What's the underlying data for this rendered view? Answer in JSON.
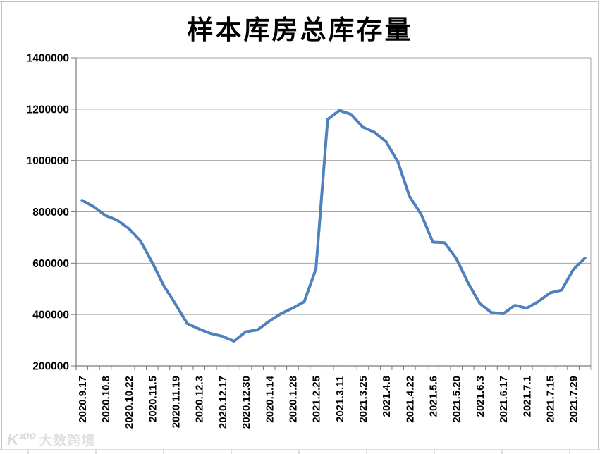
{
  "watermark": {
    "logo": "K¹⁰⁰",
    "text": "大数跨境"
  },
  "chart_data": {
    "type": "line",
    "title": "样本库房总库存量",
    "xlabel": "",
    "ylabel": "",
    "x_labels": [
      "2020.9.17",
      "2020.10.8",
      "2020.10.22",
      "2020.11.5",
      "2020.11.19",
      "2020.12.3",
      "2020.12.17",
      "2020.12.30",
      "2020.1.14",
      "2020.1.28",
      "2021.2.25",
      "2021.3.11",
      "2021.3.25",
      "2021.4.8",
      "2021.4.22",
      "2021.5.6",
      "2021.5.20",
      "2021.6.3",
      "2021.6.17",
      "2021.7.1",
      "2021.7.15",
      "2021.7.29"
    ],
    "x_label_every": 2,
    "series": [
      {
        "name": "样本库房总库存量",
        "color": "#4F81BD",
        "values": [
          845000,
          820000,
          786000,
          768000,
          735000,
          687000,
          603000,
          512000,
          440000,
          365000,
          344000,
          326000,
          315000,
          296000,
          333000,
          340000,
          374000,
          403000,
          425000,
          450000,
          578000,
          1160000,
          1195000,
          1180000,
          1130000,
          1110000,
          1073000,
          995000,
          860000,
          790000,
          682000,
          680000,
          618000,
          524000,
          443000,
          408000,
          403000,
          436000,
          425000,
          450000,
          484000,
          495000,
          575000,
          620000
        ]
      }
    ],
    "yticks": [
      200000,
      400000,
      600000,
      800000,
      1000000,
      1200000,
      1400000
    ],
    "ylim": [
      200000,
      1400000
    ],
    "grid": "horizontal",
    "legend": "none"
  }
}
